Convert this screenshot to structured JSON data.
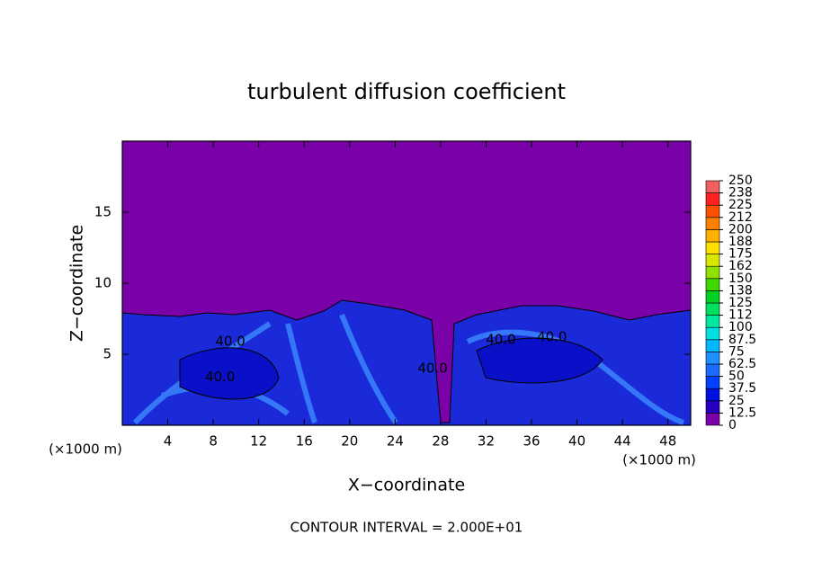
{
  "chart_data": {
    "type": "contour",
    "title": "turbulent diffusion coefficient",
    "x_label": "X−coordinate",
    "y_label": "Z−coordinate",
    "x_unit_label": "(×1000 m)",
    "annotation": "CONTOUR INTERVAL = 2.000E+01",
    "xlim": [
      0,
      50
    ],
    "ylim": [
      0,
      20
    ],
    "xticks": [
      4,
      8,
      12,
      16,
      20,
      24,
      28,
      32,
      36,
      40,
      44,
      48
    ],
    "yticks": [
      5,
      10,
      15
    ],
    "contour_labels": [
      {
        "value": 40,
        "label": "40.0",
        "x": 9.5,
        "z": 5.9
      },
      {
        "value": 40,
        "label": "40.0",
        "x": 8.6,
        "z": 3.4
      },
      {
        "value": 40,
        "label": "40.0",
        "x": 33.3,
        "z": 6.0
      },
      {
        "value": 40,
        "label": "40.0",
        "x": 37.8,
        "z": 6.2
      },
      {
        "value": 40,
        "label": "40.0",
        "x": 27.3,
        "z": 4.0
      }
    ],
    "colorbar": {
      "levels": [
        0,
        12.5,
        25,
        37.5,
        50,
        62.5,
        75,
        87.5,
        100,
        112,
        125,
        138,
        150,
        162,
        175,
        188,
        200,
        212,
        225,
        238,
        250
      ],
      "colors": [
        "#7a00a8",
        "#2a00c0",
        "#0010e0",
        "#0040ff",
        "#1a6cff",
        "#1e90ff",
        "#00b8ff",
        "#00e0e0",
        "#00e8a0",
        "#00e060",
        "#00d020",
        "#40d800",
        "#90e000",
        "#d8e800",
        "#ffe000",
        "#ffb000",
        "#ff8000",
        "#ff5000",
        "#ff2020",
        "#f06060"
      ]
    }
  }
}
